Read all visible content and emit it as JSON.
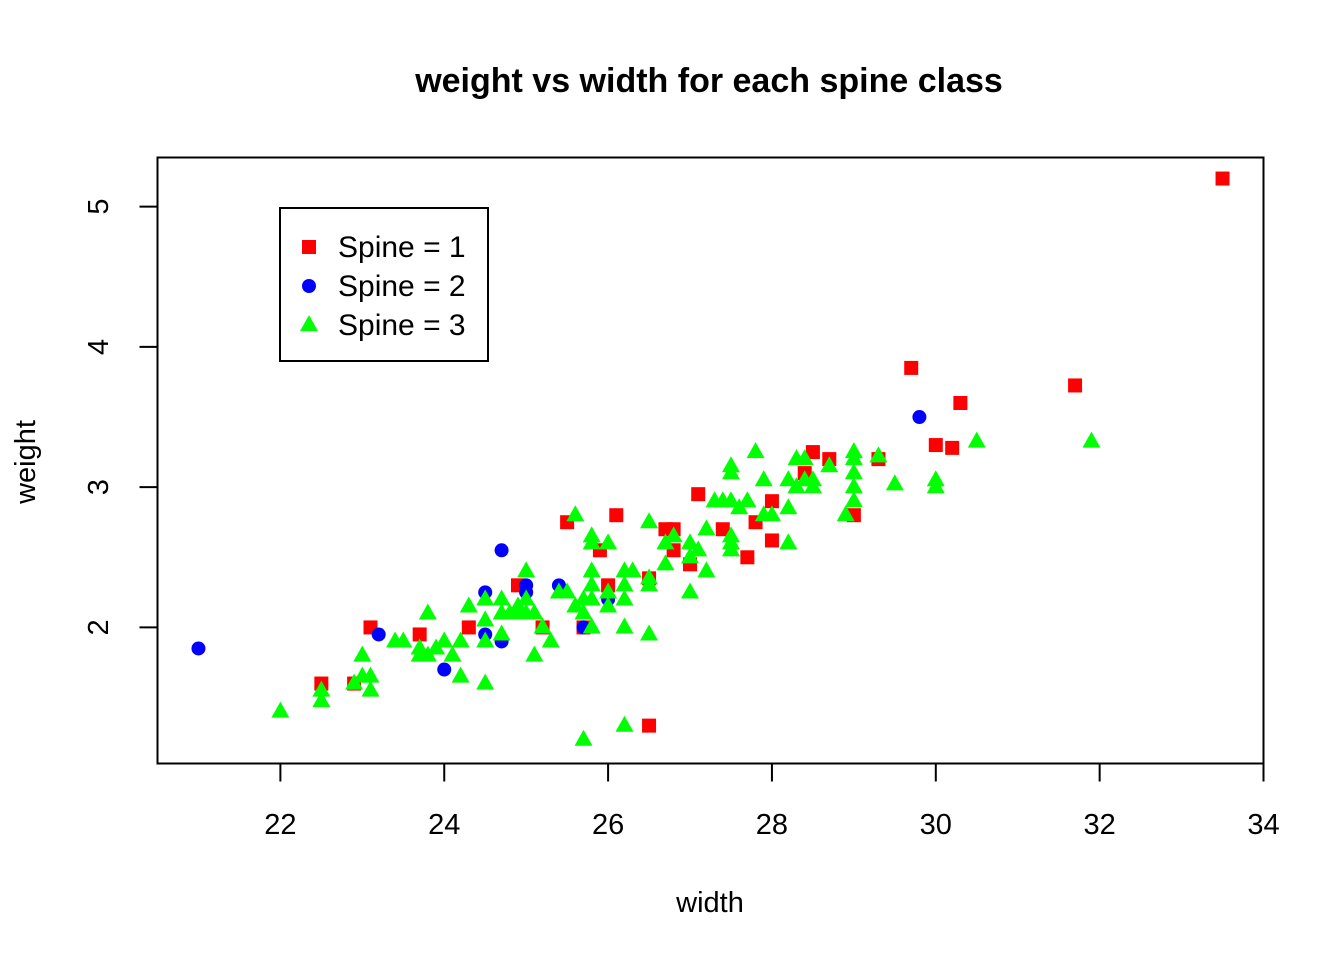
{
  "chart_data": {
    "type": "scatter",
    "title": "weight vs width for each spine class",
    "xlabel": "width",
    "ylabel": "weight",
    "xlim": [
      20.5,
      34
    ],
    "ylim": [
      1.03,
      5.35
    ],
    "xticks": [
      "22",
      "24",
      "26",
      "28",
      "30",
      "32",
      "34"
    ],
    "yticks": [
      "2",
      "3",
      "4",
      "5"
    ],
    "legend_position": "top-left",
    "series": [
      {
        "name": "Spine = 1",
        "color": "#ff0000",
        "marker": "square",
        "points": [
          [
            22.5,
            1.6
          ],
          [
            22.9,
            1.6
          ],
          [
            23.1,
            2.0
          ],
          [
            23.7,
            1.95
          ],
          [
            24.3,
            2.0
          ],
          [
            24.9,
            2.3
          ],
          [
            25.2,
            2.0
          ],
          [
            25.5,
            2.75
          ],
          [
            25.7,
            2.0
          ],
          [
            25.9,
            2.55
          ],
          [
            26.0,
            2.3
          ],
          [
            26.1,
            2.8
          ],
          [
            26.5,
            2.35
          ],
          [
            26.5,
            1.3
          ],
          [
            26.7,
            2.7
          ],
          [
            26.8,
            2.7
          ],
          [
            26.8,
            2.55
          ],
          [
            27.0,
            2.45
          ],
          [
            27.1,
            2.95
          ],
          [
            27.4,
            2.7
          ],
          [
            27.7,
            2.5
          ],
          [
            27.8,
            2.75
          ],
          [
            28.0,
            2.9
          ],
          [
            28.0,
            2.62
          ],
          [
            28.4,
            3.1
          ],
          [
            28.5,
            3.25
          ],
          [
            28.7,
            3.2
          ],
          [
            29.0,
            2.8
          ],
          [
            29.3,
            3.2
          ],
          [
            29.7,
            3.85
          ],
          [
            30.0,
            3.3
          ],
          [
            30.2,
            3.28
          ],
          [
            30.3,
            3.6
          ],
          [
            31.7,
            3.725
          ],
          [
            33.5,
            5.2
          ]
        ]
      },
      {
        "name": "Spine = 2",
        "color": "#0000ff",
        "marker": "circle",
        "points": [
          [
            21.0,
            1.85
          ],
          [
            23.2,
            1.95
          ],
          [
            24.0,
            1.7
          ],
          [
            24.5,
            2.25
          ],
          [
            24.5,
            1.95
          ],
          [
            24.7,
            2.55
          ],
          [
            24.7,
            1.9
          ],
          [
            25.0,
            2.3
          ],
          [
            25.0,
            2.25
          ],
          [
            25.4,
            2.3
          ],
          [
            25.7,
            2.0
          ],
          [
            26.0,
            2.2
          ],
          [
            29.8,
            3.5
          ]
        ]
      },
      {
        "name": "Spine = 3",
        "color": "#00ff00",
        "marker": "triangle",
        "points": [
          [
            22.0,
            1.4
          ],
          [
            22.5,
            1.55
          ],
          [
            22.5,
            1.475
          ],
          [
            22.9,
            1.6
          ],
          [
            23.0,
            1.65
          ],
          [
            23.0,
            1.8
          ],
          [
            23.1,
            1.55
          ],
          [
            23.1,
            1.65
          ],
          [
            23.4,
            1.9
          ],
          [
            23.5,
            1.9
          ],
          [
            23.7,
            1.85
          ],
          [
            23.7,
            1.8
          ],
          [
            23.8,
            1.8
          ],
          [
            23.8,
            2.1
          ],
          [
            23.9,
            1.85
          ],
          [
            24.0,
            1.9
          ],
          [
            24.1,
            1.8
          ],
          [
            24.2,
            1.65
          ],
          [
            24.2,
            1.9
          ],
          [
            24.3,
            2.15
          ],
          [
            24.5,
            1.6
          ],
          [
            24.5,
            1.9
          ],
          [
            24.5,
            2.05
          ],
          [
            24.5,
            2.2
          ],
          [
            24.7,
            1.95
          ],
          [
            24.7,
            2.1
          ],
          [
            24.7,
            2.2
          ],
          [
            24.8,
            2.1
          ],
          [
            24.9,
            2.15
          ],
          [
            24.9,
            2.1
          ],
          [
            25.0,
            2.1
          ],
          [
            25.0,
            2.2
          ],
          [
            25.0,
            2.4
          ],
          [
            25.1,
            1.8
          ],
          [
            25.1,
            2.1
          ],
          [
            25.2,
            2.0
          ],
          [
            25.3,
            1.9
          ],
          [
            25.4,
            2.25
          ],
          [
            25.5,
            2.25
          ],
          [
            25.6,
            2.15
          ],
          [
            25.6,
            2.8
          ],
          [
            25.7,
            1.2
          ],
          [
            25.7,
            2.1
          ],
          [
            25.7,
            2.2
          ],
          [
            25.8,
            2.0
          ],
          [
            25.8,
            2.2
          ],
          [
            25.8,
            2.3
          ],
          [
            25.8,
            2.4
          ],
          [
            25.8,
            2.6
          ],
          [
            25.8,
            2.65
          ],
          [
            26.0,
            2.15
          ],
          [
            26.0,
            2.25
          ],
          [
            26.0,
            2.6
          ],
          [
            26.2,
            1.3
          ],
          [
            26.2,
            2.0
          ],
          [
            26.2,
            2.2
          ],
          [
            26.2,
            2.3
          ],
          [
            26.2,
            2.4
          ],
          [
            26.3,
            2.4
          ],
          [
            26.5,
            1.95
          ],
          [
            26.5,
            2.35
          ],
          [
            26.5,
            2.3
          ],
          [
            26.5,
            2.75
          ],
          [
            26.7,
            2.45
          ],
          [
            26.7,
            2.6
          ],
          [
            26.8,
            2.65
          ],
          [
            27.0,
            2.25
          ],
          [
            27.0,
            2.5
          ],
          [
            27.0,
            2.6
          ],
          [
            27.1,
            2.55
          ],
          [
            27.2,
            2.4
          ],
          [
            27.2,
            2.7
          ],
          [
            27.3,
            2.9
          ],
          [
            27.4,
            2.9
          ],
          [
            27.5,
            2.55
          ],
          [
            27.5,
            2.6
          ],
          [
            27.5,
            2.65
          ],
          [
            27.5,
            2.9
          ],
          [
            27.5,
            3.1
          ],
          [
            27.5,
            3.15
          ],
          [
            27.6,
            2.85
          ],
          [
            27.7,
            2.9
          ],
          [
            27.8,
            3.25
          ],
          [
            27.9,
            2.8
          ],
          [
            27.9,
            3.05
          ],
          [
            28.0,
            2.8
          ],
          [
            28.2,
            2.6
          ],
          [
            28.2,
            2.85
          ],
          [
            28.2,
            3.05
          ],
          [
            28.3,
            3.0
          ],
          [
            28.3,
            3.2
          ],
          [
            28.4,
            3.05
          ],
          [
            28.4,
            3.2
          ],
          [
            28.5,
            3.0
          ],
          [
            28.5,
            3.05
          ],
          [
            28.7,
            3.15
          ],
          [
            28.9,
            2.8
          ],
          [
            29.0,
            2.9
          ],
          [
            29.0,
            3.0
          ],
          [
            29.0,
            3.1
          ],
          [
            29.0,
            3.2
          ],
          [
            29.0,
            3.25
          ],
          [
            29.3,
            3.22
          ],
          [
            29.5,
            3.02
          ],
          [
            30.0,
            3.0
          ],
          [
            30.0,
            3.05
          ],
          [
            30.5,
            3.325
          ],
          [
            31.9,
            3.325
          ]
        ]
      }
    ]
  }
}
